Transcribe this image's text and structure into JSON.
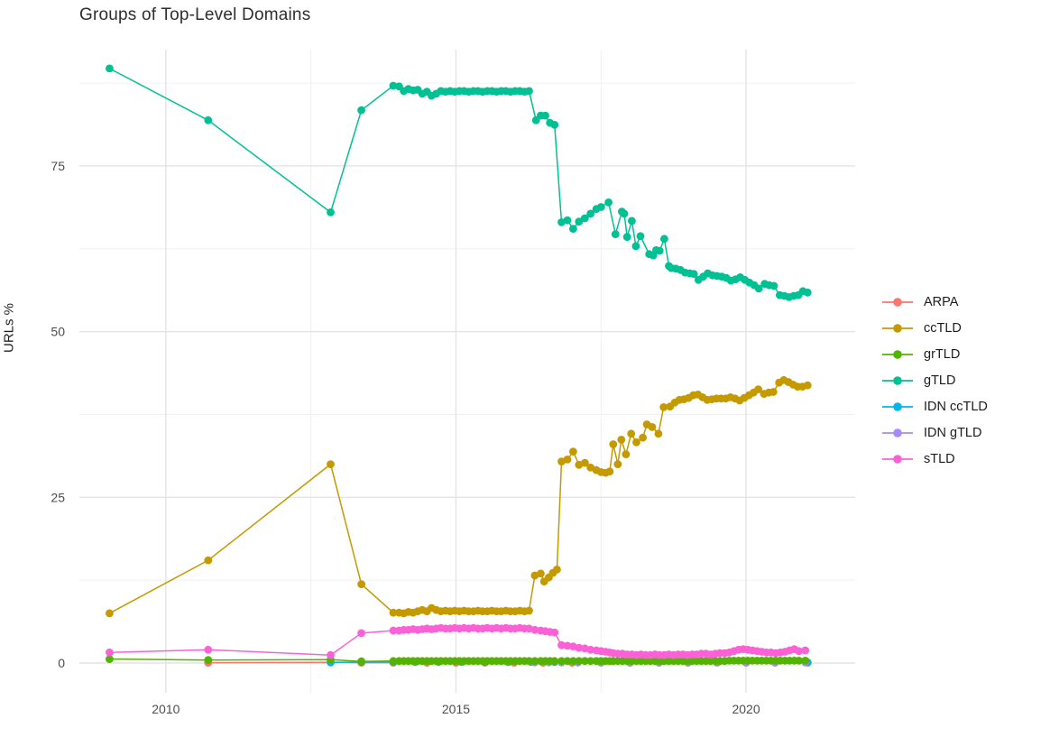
{
  "title": "Groups of Top-Level Domains",
  "ylabel": "URLs %",
  "legend": {
    "items": [
      {
        "label": "ARPA",
        "color": "#F8766D"
      },
      {
        "label": "ccTLD",
        "color": "#C49A00"
      },
      {
        "label": "grTLD",
        "color": "#53B400"
      },
      {
        "label": "gTLD",
        "color": "#00C094"
      },
      {
        "label": "IDN ccTLD",
        "color": "#00B6EB"
      },
      {
        "label": "IDN gTLD",
        "color": "#A58AFF"
      },
      {
        "label": "sTLD",
        "color": "#FB61D7"
      }
    ]
  },
  "chart_data": {
    "type": "line",
    "title": "Groups of Top-Level Domains",
    "xlabel": "",
    "ylabel": "URLs %",
    "grid": true,
    "legend_position": "right",
    "marker": "circle",
    "xlim": [
      2008.51,
      2021.88
    ],
    "ylim": [
      -4.49,
      92.55
    ],
    "x_ticks": [
      2010,
      2015,
      2020
    ],
    "x_tick_labels": [
      "2010",
      "2015",
      "2020"
    ],
    "x_minor": [
      2012.5,
      2017.5
    ],
    "y_ticks": [
      0,
      25,
      50,
      75
    ],
    "y_tick_labels": [
      "0",
      "25",
      "50",
      "75"
    ],
    "y_minor": [
      12.5,
      37.5,
      62.5,
      87.5
    ],
    "grid_major_color": "#e4e4e4",
    "grid_minor_color": "#f0f0f0",
    "tick_label_color": "#4d4d4d",
    "draw_order": [
      "ARPA",
      "IDN ccTLD",
      "IDN gTLD",
      "grTLD",
      "ccTLD",
      "gTLD",
      "sTLD"
    ],
    "series": [
      {
        "name": "ARPA",
        "color": "#F8766D",
        "x": [
          2010.73,
          2012.84,
          2013.37,
          2013.92,
          2014.5,
          2015.0,
          2015.5,
          2016.0,
          2016.5,
          2017.0,
          2017.5,
          2018.0,
          2018.5,
          2019.0,
          2019.5,
          2020.0,
          2020.5,
          2021.06
        ],
        "y": [
          0.05,
          0.1,
          0.05,
          0.05,
          0.05,
          0.05,
          0.05,
          0.05,
          0.05,
          0.05,
          0.05,
          0.05,
          0.05,
          0.05,
          0.05,
          0.05,
          0.05,
          0.05
        ]
      },
      {
        "name": "ccTLD",
        "color": "#C49A00",
        "x": [
          2009.03,
          2010.73,
          2012.84,
          2013.37,
          2013.92,
          2014.02,
          2014.1,
          2014.18,
          2014.26,
          2014.34,
          2014.42,
          2014.5,
          2014.58,
          2014.66,
          2014.74,
          2014.82,
          2014.9,
          2014.98,
          2015.06,
          2015.14,
          2015.22,
          2015.3,
          2015.38,
          2015.46,
          2015.54,
          2015.62,
          2015.7,
          2015.78,
          2015.86,
          2015.94,
          2016.02,
          2016.1,
          2016.18,
          2016.26,
          2016.36,
          2016.46,
          2016.52,
          2016.6,
          2016.67,
          2016.74,
          2016.82,
          2016.92,
          2017.02,
          2017.12,
          2017.22,
          2017.32,
          2017.42,
          2017.5,
          2017.58,
          2017.65,
          2017.71,
          2017.79,
          2017.85,
          2017.93,
          2018.02,
          2018.11,
          2018.22,
          2018.29,
          2018.38,
          2018.49,
          2018.58,
          2018.69,
          2018.77,
          2018.85,
          2018.93,
          2019.01,
          2019.09,
          2019.17,
          2019.25,
          2019.33,
          2019.41,
          2019.49,
          2019.57,
          2019.65,
          2019.73,
          2019.81,
          2019.89,
          2019.97,
          2020.05,
          2020.13,
          2020.21,
          2020.31,
          2020.39,
          2020.47,
          2020.57,
          2020.65,
          2020.73,
          2020.81,
          2020.89,
          2020.97,
          2021.06
        ],
        "y": [
          7.5,
          15.5,
          30.0,
          11.9,
          7.6,
          7.6,
          7.5,
          7.7,
          7.6,
          7.8,
          8.0,
          7.8,
          8.3,
          8.0,
          7.8,
          7.9,
          7.8,
          7.9,
          7.8,
          7.9,
          7.8,
          7.8,
          7.9,
          7.8,
          7.8,
          7.9,
          7.8,
          7.8,
          7.9,
          7.8,
          7.8,
          7.9,
          7.8,
          7.9,
          13.2,
          13.5,
          12.3,
          12.9,
          13.6,
          14.1,
          30.4,
          30.7,
          31.9,
          29.9,
          30.2,
          29.5,
          29.1,
          28.8,
          28.7,
          28.9,
          33.0,
          30.0,
          33.7,
          31.5,
          34.6,
          33.3,
          34.0,
          36.0,
          35.6,
          34.6,
          38.6,
          38.7,
          39.3,
          39.7,
          39.8,
          40.0,
          40.4,
          40.5,
          40.1,
          39.7,
          39.8,
          39.9,
          39.9,
          39.9,
          40.1,
          39.9,
          39.6,
          40.0,
          40.4,
          40.8,
          41.3,
          40.6,
          40.8,
          40.9,
          42.3,
          42.7,
          42.4,
          42.0,
          41.7,
          41.7,
          41.9
        ]
      },
      {
        "name": "grTLD",
        "color": "#53B400",
        "x": [
          2009.03,
          2010.73,
          2012.84,
          2013.37,
          2013.92,
          2014.02,
          2014.1,
          2014.18,
          2014.26,
          2014.34,
          2014.42,
          2014.5,
          2014.58,
          2014.66,
          2014.74,
          2014.82,
          2014.9,
          2014.98,
          2015.06,
          2015.14,
          2015.22,
          2015.3,
          2015.38,
          2015.46,
          2015.54,
          2015.62,
          2015.7,
          2015.78,
          2015.86,
          2015.94,
          2016.02,
          2016.1,
          2016.18,
          2016.26,
          2016.36,
          2016.46,
          2016.54,
          2016.62,
          2016.7,
          2016.82,
          2016.92,
          2017.02,
          2017.12,
          2017.22,
          2017.32,
          2017.42,
          2017.5,
          2017.58,
          2017.65,
          2017.71,
          2017.79,
          2017.87,
          2017.95,
          2018.03,
          2018.11,
          2018.19,
          2018.27,
          2018.35,
          2018.43,
          2018.51,
          2018.59,
          2018.67,
          2018.75,
          2018.83,
          2018.91,
          2018.99,
          2019.07,
          2019.15,
          2019.23,
          2019.31,
          2019.39,
          2019.47,
          2019.55,
          2019.63,
          2019.71,
          2019.79,
          2019.87,
          2019.95,
          2020.03,
          2020.11,
          2020.19,
          2020.27,
          2020.35,
          2020.43,
          2020.51,
          2020.59,
          2020.67,
          2020.75,
          2020.83,
          2020.91,
          2021.02
        ],
        "y": [
          0.6,
          0.45,
          0.5,
          0.25,
          0.3,
          0.3,
          0.3,
          0.3,
          0.3,
          0.3,
          0.3,
          0.3,
          0.3,
          0.3,
          0.3,
          0.3,
          0.3,
          0.3,
          0.3,
          0.3,
          0.3,
          0.3,
          0.3,
          0.3,
          0.3,
          0.3,
          0.3,
          0.3,
          0.3,
          0.3,
          0.3,
          0.3,
          0.3,
          0.3,
          0.3,
          0.3,
          0.3,
          0.3,
          0.3,
          0.3,
          0.3,
          0.3,
          0.3,
          0.3,
          0.3,
          0.3,
          0.3,
          0.3,
          0.3,
          0.3,
          0.3,
          0.3,
          0.3,
          0.3,
          0.3,
          0.3,
          0.3,
          0.3,
          0.3,
          0.3,
          0.3,
          0.3,
          0.3,
          0.3,
          0.3,
          0.3,
          0.3,
          0.3,
          0.3,
          0.3,
          0.3,
          0.3,
          0.3,
          0.3,
          0.35,
          0.35,
          0.35,
          0.35,
          0.35,
          0.35,
          0.35,
          0.35,
          0.35,
          0.35,
          0.35,
          0.35,
          0.35,
          0.35,
          0.35,
          0.35,
          0.35
        ]
      },
      {
        "name": "gTLD",
        "color": "#00C094",
        "x": [
          2009.03,
          2010.73,
          2012.84,
          2013.37,
          2013.92,
          2014.02,
          2014.1,
          2014.18,
          2014.26,
          2014.34,
          2014.42,
          2014.5,
          2014.58,
          2014.66,
          2014.74,
          2014.82,
          2014.9,
          2014.98,
          2015.06,
          2015.14,
          2015.22,
          2015.3,
          2015.38,
          2015.46,
          2015.54,
          2015.62,
          2015.7,
          2015.78,
          2015.86,
          2015.94,
          2016.02,
          2016.1,
          2016.18,
          2016.26,
          2016.38,
          2016.46,
          2016.54,
          2016.62,
          2016.7,
          2016.82,
          2016.92,
          2017.02,
          2017.12,
          2017.22,
          2017.32,
          2017.42,
          2017.5,
          2017.63,
          2017.75,
          2017.86,
          2017.9,
          2017.95,
          2018.03,
          2018.1,
          2018.18,
          2018.33,
          2018.4,
          2018.45,
          2018.51,
          2018.59,
          2018.67,
          2018.71,
          2018.79,
          2018.87,
          2018.95,
          2019.03,
          2019.1,
          2019.18,
          2019.26,
          2019.34,
          2019.42,
          2019.5,
          2019.58,
          2019.66,
          2019.74,
          2019.82,
          2019.9,
          2019.98,
          2020.06,
          2020.14,
          2020.22,
          2020.32,
          2020.4,
          2020.48,
          2020.58,
          2020.66,
          2020.74,
          2020.82,
          2020.9,
          2020.98,
          2021.06
        ],
        "y": [
          89.7,
          81.9,
          68.0,
          83.4,
          87.1,
          87.0,
          86.3,
          86.6,
          86.4,
          86.5,
          85.9,
          86.2,
          85.6,
          85.9,
          86.3,
          86.2,
          86.3,
          86.2,
          86.3,
          86.3,
          86.2,
          86.3,
          86.3,
          86.2,
          86.3,
          86.3,
          86.2,
          86.3,
          86.3,
          86.2,
          86.3,
          86.3,
          86.2,
          86.3,
          81.9,
          82.6,
          82.6,
          81.5,
          81.2,
          66.5,
          66.8,
          65.5,
          66.6,
          67.1,
          67.8,
          68.5,
          68.8,
          69.5,
          64.7,
          68.1,
          67.8,
          64.3,
          66.7,
          62.9,
          64.4,
          61.7,
          61.5,
          62.3,
          62.2,
          64.0,
          59.9,
          59.6,
          59.5,
          59.3,
          58.9,
          58.8,
          58.7,
          57.8,
          58.3,
          58.8,
          58.5,
          58.4,
          58.3,
          58.1,
          57.7,
          57.9,
          58.2,
          57.8,
          57.4,
          57.0,
          56.5,
          57.2,
          57.0,
          56.9,
          55.5,
          55.4,
          55.2,
          55.4,
          55.5,
          56.1,
          55.9
        ]
      },
      {
        "name": "IDN ccTLD",
        "color": "#00B6EB",
        "x": [
          2012.84,
          2013.37,
          2013.92,
          2014.3,
          2014.7,
          2015.1,
          2015.5,
          2015.9,
          2016.3,
          2016.7,
          2017.1,
          2017.5,
          2018.0,
          2018.5,
          2019.0,
          2019.5,
          2020.0,
          2020.5,
          2021.06
        ],
        "y": [
          0.1,
          0.15,
          0.15,
          0.15,
          0.15,
          0.15,
          0.15,
          0.15,
          0.15,
          0.15,
          0.1,
          0.1,
          0.1,
          0.1,
          0.1,
          0.1,
          0.1,
          0.1,
          0.1
        ]
      },
      {
        "name": "IDN gTLD",
        "color": "#A58AFF",
        "x": [
          2016.36,
          2016.6,
          2016.82,
          2017.1,
          2017.5,
          2018.0,
          2018.5,
          2019.0,
          2019.5,
          2020.0,
          2020.5,
          2021.02
        ],
        "y": [
          0.1,
          0.1,
          0.08,
          0.08,
          0.08,
          0.08,
          0.08,
          0.08,
          0.08,
          0.08,
          0.08,
          0.08
        ]
      },
      {
        "name": "sTLD",
        "color": "#FB61D7",
        "x": [
          2009.03,
          2010.73,
          2012.84,
          2013.37,
          2013.92,
          2014.02,
          2014.1,
          2014.18,
          2014.26,
          2014.34,
          2014.42,
          2014.5,
          2014.58,
          2014.66,
          2014.74,
          2014.82,
          2014.9,
          2014.98,
          2015.06,
          2015.14,
          2015.22,
          2015.3,
          2015.38,
          2015.46,
          2015.54,
          2015.62,
          2015.7,
          2015.78,
          2015.86,
          2015.94,
          2016.02,
          2016.1,
          2016.18,
          2016.26,
          2016.36,
          2016.46,
          2016.54,
          2016.62,
          2016.7,
          2016.82,
          2016.92,
          2017.02,
          2017.12,
          2017.22,
          2017.32,
          2017.42,
          2017.5,
          2017.58,
          2017.65,
          2017.71,
          2017.79,
          2017.87,
          2017.95,
          2018.03,
          2018.11,
          2018.19,
          2018.27,
          2018.35,
          2018.43,
          2018.51,
          2018.59,
          2018.67,
          2018.75,
          2018.83,
          2018.91,
          2018.99,
          2019.07,
          2019.15,
          2019.23,
          2019.31,
          2019.39,
          2019.47,
          2019.55,
          2019.63,
          2019.71,
          2019.79,
          2019.87,
          2019.95,
          2020.03,
          2020.11,
          2020.19,
          2020.27,
          2020.35,
          2020.43,
          2020.51,
          2020.59,
          2020.67,
          2020.75,
          2020.83,
          2020.91,
          2021.02
        ],
        "y": [
          1.6,
          2.0,
          1.2,
          4.5,
          4.9,
          4.9,
          5.0,
          5.0,
          5.1,
          5.0,
          5.1,
          5.2,
          5.1,
          5.2,
          5.3,
          5.2,
          5.2,
          5.3,
          5.2,
          5.3,
          5.2,
          5.3,
          5.2,
          5.2,
          5.3,
          5.2,
          5.3,
          5.2,
          5.3,
          5.2,
          5.2,
          5.3,
          5.2,
          5.2,
          5.0,
          4.9,
          4.8,
          4.7,
          4.6,
          2.7,
          2.6,
          2.5,
          2.3,
          2.2,
          2.0,
          1.9,
          1.8,
          1.7,
          1.6,
          1.5,
          1.4,
          1.4,
          1.3,
          1.3,
          1.2,
          1.3,
          1.2,
          1.2,
          1.3,
          1.2,
          1.2,
          1.3,
          1.2,
          1.3,
          1.3,
          1.2,
          1.3,
          1.3,
          1.4,
          1.4,
          1.3,
          1.4,
          1.5,
          1.5,
          1.6,
          1.8,
          2.0,
          2.1,
          2.0,
          1.9,
          1.8,
          1.7,
          1.6,
          1.6,
          1.5,
          1.6,
          1.7,
          1.9,
          2.1,
          1.8,
          1.9
        ]
      }
    ]
  }
}
